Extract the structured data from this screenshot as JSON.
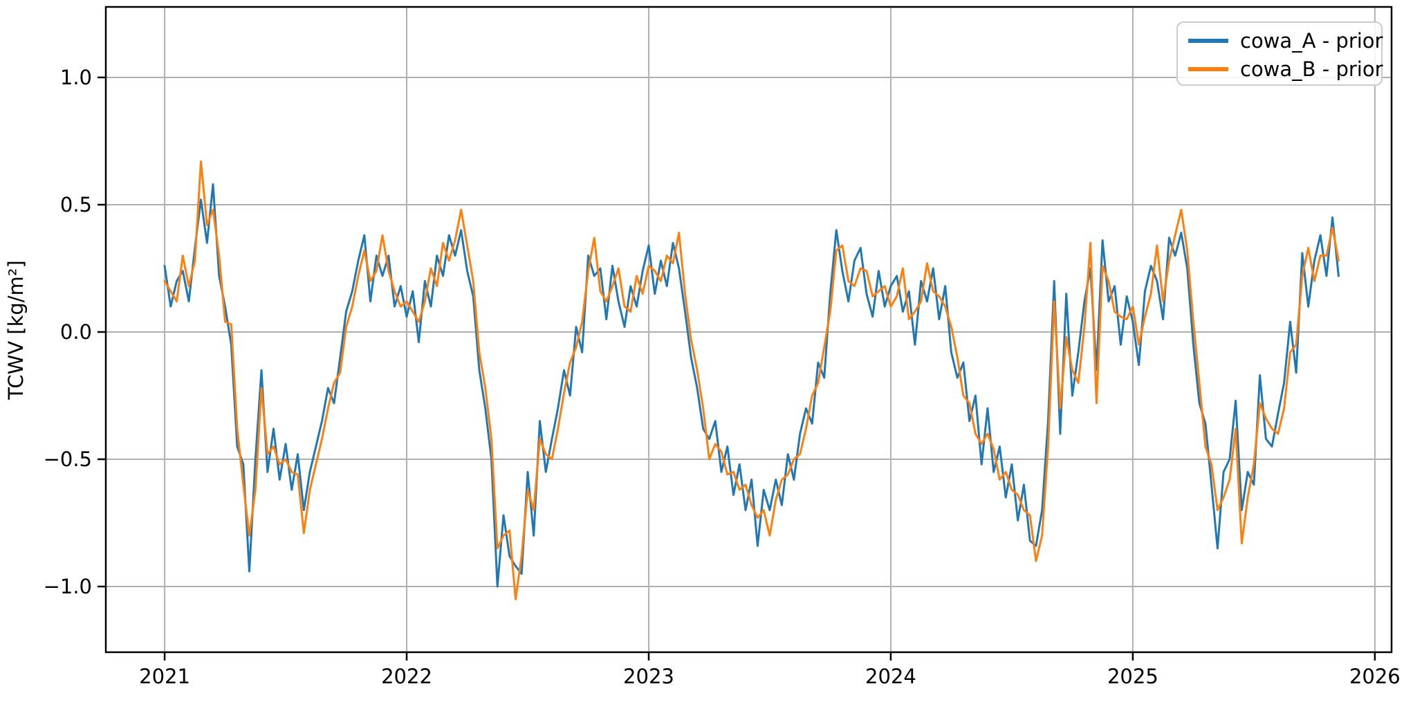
{
  "figure": {
    "background": "#ffffff"
  },
  "chart_data": {
    "type": "line",
    "title": "",
    "xlabel": "",
    "ylabel": "TCWV [kg/m²]",
    "xlim": [
      2020.757,
      2026.069
    ],
    "ylim": [
      -1.258,
      1.277
    ],
    "grid": true,
    "grid_color": "#b0b0b0",
    "spine_color": "#000000",
    "background": "#ffffff",
    "x_ticks": [
      {
        "v": 2021,
        "label": "2021"
      },
      {
        "v": 2022,
        "label": "2022"
      },
      {
        "v": 2023,
        "label": "2023"
      },
      {
        "v": 2024,
        "label": "2024"
      },
      {
        "v": 2025,
        "label": "2025"
      },
      {
        "v": 2026,
        "label": "2026"
      }
    ],
    "y_ticks": [
      {
        "v": -1.0,
        "label": "−1.0"
      },
      {
        "v": -0.5,
        "label": "−0.5"
      },
      {
        "v": 0.0,
        "label": "0.0"
      },
      {
        "v": 0.5,
        "label": "0.5"
      },
      {
        "v": 1.0,
        "label": "1.0"
      }
    ],
    "legend": {
      "position": "upper right",
      "border_color": "#cccccc",
      "entries": [
        {
          "label": "cowa_A - prior",
          "color": "#1f77b4"
        },
        {
          "label": "cowa_B - prior",
          "color": "#ff7f0e"
        }
      ]
    },
    "x_start": 2021.0,
    "x_step": 0.025,
    "series": [
      {
        "name": "cowa_A - prior",
        "color": "#1f77b4",
        "values": [
          0.26,
          0.1,
          0.2,
          0.24,
          0.12,
          0.33,
          0.52,
          0.35,
          0.58,
          0.22,
          0.1,
          -0.05,
          -0.45,
          -0.52,
          -0.94,
          -0.5,
          -0.15,
          -0.55,
          -0.38,
          -0.58,
          -0.44,
          -0.62,
          -0.48,
          -0.7,
          -0.55,
          -0.45,
          -0.35,
          -0.22,
          -0.28,
          -0.1,
          0.08,
          0.16,
          0.28,
          0.38,
          0.12,
          0.3,
          0.22,
          0.3,
          0.1,
          0.18,
          0.06,
          0.16,
          -0.04,
          0.2,
          0.1,
          0.3,
          0.22,
          0.38,
          0.3,
          0.4,
          0.24,
          0.14,
          -0.15,
          -0.3,
          -0.5,
          -1.0,
          -0.72,
          -0.88,
          -0.92,
          -0.95,
          -0.55,
          -0.8,
          -0.35,
          -0.55,
          -0.42,
          -0.3,
          -0.15,
          -0.25,
          0.02,
          -0.08,
          0.3,
          0.22,
          0.25,
          0.05,
          0.26,
          0.12,
          0.02,
          0.18,
          0.1,
          0.24,
          0.34,
          0.15,
          0.28,
          0.18,
          0.35,
          0.25,
          0.08,
          -0.1,
          -0.22,
          -0.38,
          -0.42,
          -0.35,
          -0.55,
          -0.45,
          -0.64,
          -0.52,
          -0.7,
          -0.58,
          -0.84,
          -0.62,
          -0.7,
          -0.58,
          -0.68,
          -0.48,
          -0.58,
          -0.4,
          -0.3,
          -0.36,
          -0.12,
          -0.18,
          0.15,
          0.4,
          0.24,
          0.12,
          0.28,
          0.33,
          0.15,
          0.06,
          0.24,
          0.1,
          0.18,
          0.22,
          0.08,
          0.16,
          -0.05,
          0.2,
          0.12,
          0.25,
          0.05,
          0.18,
          -0.08,
          -0.18,
          -0.12,
          -0.35,
          -0.25,
          -0.52,
          -0.3,
          -0.55,
          -0.45,
          -0.65,
          -0.52,
          -0.74,
          -0.6,
          -0.82,
          -0.84,
          -0.7,
          -0.35,
          0.2,
          -0.4,
          0.15,
          -0.25,
          -0.08,
          0.12,
          0.25,
          -0.15,
          0.36,
          0.12,
          0.18,
          -0.05,
          0.14,
          0.04,
          -0.13,
          0.16,
          0.26,
          0.2,
          0.05,
          0.37,
          0.3,
          0.39,
          0.25,
          -0.05,
          -0.28,
          -0.36,
          -0.6,
          -0.85,
          -0.55,
          -0.5,
          -0.27,
          -0.7,
          -0.55,
          -0.6,
          -0.17,
          -0.42,
          -0.45,
          -0.32,
          -0.2,
          0.04,
          -0.16,
          0.31,
          0.1,
          0.28,
          0.38,
          0.22,
          0.45,
          0.22
        ]
      },
      {
        "name": "cowa_B - prior",
        "color": "#ff7f0e",
        "values": [
          0.2,
          0.16,
          0.12,
          0.3,
          0.18,
          0.28,
          0.67,
          0.42,
          0.48,
          0.3,
          0.04,
          0.03,
          -0.38,
          -0.6,
          -0.8,
          -0.62,
          -0.22,
          -0.48,
          -0.45,
          -0.52,
          -0.5,
          -0.55,
          -0.56,
          -0.79,
          -0.62,
          -0.52,
          -0.42,
          -0.3,
          -0.2,
          -0.16,
          0.02,
          0.1,
          0.22,
          0.32,
          0.2,
          0.24,
          0.38,
          0.24,
          0.16,
          0.1,
          0.12,
          0.08,
          0.04,
          0.12,
          0.25,
          0.18,
          0.35,
          0.28,
          0.36,
          0.48,
          0.34,
          0.2,
          -0.08,
          -0.22,
          -0.42,
          -0.85,
          -0.8,
          -0.78,
          -1.05,
          -0.88,
          -0.62,
          -0.7,
          -0.42,
          -0.48,
          -0.5,
          -0.38,
          -0.24,
          -0.12,
          -0.06,
          0.04,
          0.24,
          0.37,
          0.16,
          0.12,
          0.18,
          0.25,
          0.1,
          0.08,
          0.22,
          0.15,
          0.26,
          0.24,
          0.2,
          0.3,
          0.27,
          0.39,
          0.15,
          -0.03,
          -0.15,
          -0.3,
          -0.5,
          -0.44,
          -0.47,
          -0.56,
          -0.55,
          -0.62,
          -0.6,
          -0.68,
          -0.73,
          -0.7,
          -0.8,
          -0.66,
          -0.58,
          -0.56,
          -0.5,
          -0.48,
          -0.38,
          -0.25,
          -0.2,
          -0.06,
          0.08,
          0.32,
          0.34,
          0.2,
          0.18,
          0.25,
          0.24,
          0.14,
          0.16,
          0.18,
          0.1,
          0.14,
          0.25,
          0.05,
          0.08,
          0.12,
          0.27,
          0.16,
          0.14,
          0.1,
          0.02,
          -0.1,
          -0.25,
          -0.28,
          -0.4,
          -0.44,
          -0.4,
          -0.46,
          -0.58,
          -0.55,
          -0.62,
          -0.64,
          -0.7,
          -0.72,
          -0.9,
          -0.8,
          -0.45,
          0.12,
          -0.3,
          -0.02,
          -0.15,
          -0.2,
          0.02,
          0.35,
          -0.28,
          0.26,
          0.2,
          0.08,
          0.06,
          0.05,
          0.1,
          -0.05,
          0.06,
          0.15,
          0.34,
          0.12,
          0.28,
          0.38,
          0.48,
          0.32,
          0.04,
          -0.2,
          -0.45,
          -0.52,
          -0.7,
          -0.65,
          -0.58,
          -0.38,
          -0.83,
          -0.65,
          -0.52,
          -0.28,
          -0.34,
          -0.38,
          -0.4,
          -0.3,
          -0.08,
          -0.05,
          0.22,
          0.33,
          0.2,
          0.3,
          0.3,
          0.41,
          0.28
        ]
      }
    ]
  }
}
